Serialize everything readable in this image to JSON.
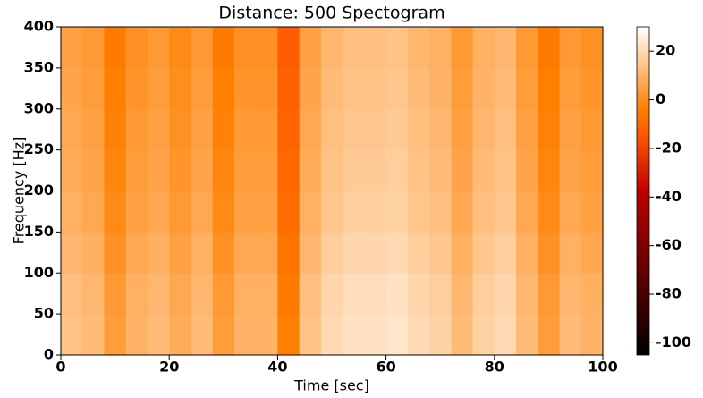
{
  "chart_data": {
    "type": "heatmap",
    "title": "Distance: 500 Spectogram",
    "x_label": "Time [sec]",
    "y_label": "Frequency [Hz]",
    "xlim": [
      0,
      100
    ],
    "ylim": [
      0,
      400
    ],
    "xticks": [
      0,
      20,
      40,
      60,
      80,
      100
    ],
    "yticks": [
      0,
      50,
      100,
      150,
      200,
      250,
      300,
      350,
      400
    ],
    "colormap": "gist_heat",
    "clim": [
      -105,
      30
    ],
    "cticks": [
      -100,
      -80,
      -60,
      -40,
      -20,
      0,
      20
    ],
    "z": [
      [
        14,
        12,
        4,
        10,
        12,
        8,
        12,
        4,
        10,
        10,
        -4,
        14,
        20,
        22,
        22,
        23,
        20,
        18,
        12,
        18,
        20,
        12,
        4,
        12,
        10
      ],
      [
        13,
        11,
        3,
        9,
        11,
        7,
        11,
        3,
        9,
        9,
        -5,
        13,
        19,
        21,
        21,
        22,
        19,
        17,
        11,
        17,
        19,
        11,
        3,
        11,
        9
      ],
      [
        11,
        9,
        1,
        7,
        9,
        5,
        9,
        1,
        7,
        7,
        -7,
        11,
        17,
        19,
        19,
        20,
        17,
        15,
        9,
        15,
        17,
        9,
        1,
        9,
        7
      ],
      [
        9,
        7,
        -1,
        5,
        7,
        3,
        7,
        -1,
        5,
        5,
        -9,
        9,
        15,
        17,
        17,
        18,
        15,
        13,
        7,
        13,
        15,
        7,
        -1,
        7,
        5
      ],
      [
        8,
        6,
        -2,
        4,
        6,
        2,
        6,
        -2,
        4,
        4,
        -10,
        8,
        14,
        16,
        16,
        17,
        14,
        12,
        6,
        12,
        14,
        6,
        -2,
        6,
        4
      ],
      [
        7,
        5,
        -3,
        3,
        5,
        1,
        5,
        -3,
        3,
        3,
        -11,
        7,
        13,
        15,
        15,
        16,
        13,
        11,
        5,
        11,
        13,
        5,
        -3,
        5,
        3
      ],
      [
        6,
        4,
        -4,
        2,
        4,
        0,
        4,
        -4,
        2,
        2,
        -12,
        6,
        12,
        14,
        14,
        15,
        12,
        10,
        4,
        10,
        12,
        4,
        -4,
        4,
        2
      ],
      [
        5,
        3,
        -5,
        1,
        3,
        -1,
        3,
        -5,
        1,
        1,
        -13,
        5,
        11,
        13,
        13,
        14,
        11,
        9,
        3,
        9,
        11,
        3,
        -5,
        3,
        1
      ]
    ]
  }
}
